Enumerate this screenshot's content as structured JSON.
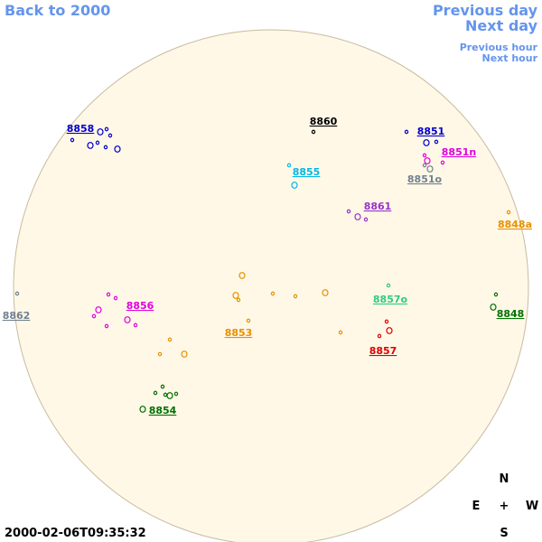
{
  "nav": {
    "back": "Back to 2000",
    "previous_day": "Previous day",
    "next_day": "Next day",
    "previous_hour": "Previous hour",
    "next_hour": "Next hour"
  },
  "timestamp": "2000-02-06T09:35:32",
  "compass": {
    "north": "N",
    "east": "E",
    "center": "+",
    "west": "W",
    "south": "S"
  },
  "regions": [
    {
      "label": "8858",
      "color": "#0000cc"
    },
    {
      "label": "8860",
      "color": "#000000"
    },
    {
      "label": "8851",
      "color": "#0000cc"
    },
    {
      "label": "8851n",
      "color": "#e000e0"
    },
    {
      "label": "8855",
      "color": "#00b8e8"
    },
    {
      "label": "8851o",
      "color": "#708090"
    },
    {
      "label": "8861",
      "color": "#9932cc"
    },
    {
      "label": "8848a",
      "color": "#e89000"
    },
    {
      "label": "8862",
      "color": "#708090"
    },
    {
      "label": "8856",
      "color": "#e000e0"
    },
    {
      "label": "8857o",
      "color": "#2ecc80"
    },
    {
      "label": "8848",
      "color": "#007000"
    },
    {
      "label": "8853",
      "color": "#e89000"
    },
    {
      "label": "8857",
      "color": "#dd0000"
    },
    {
      "label": "8854",
      "color": "#007000"
    }
  ]
}
